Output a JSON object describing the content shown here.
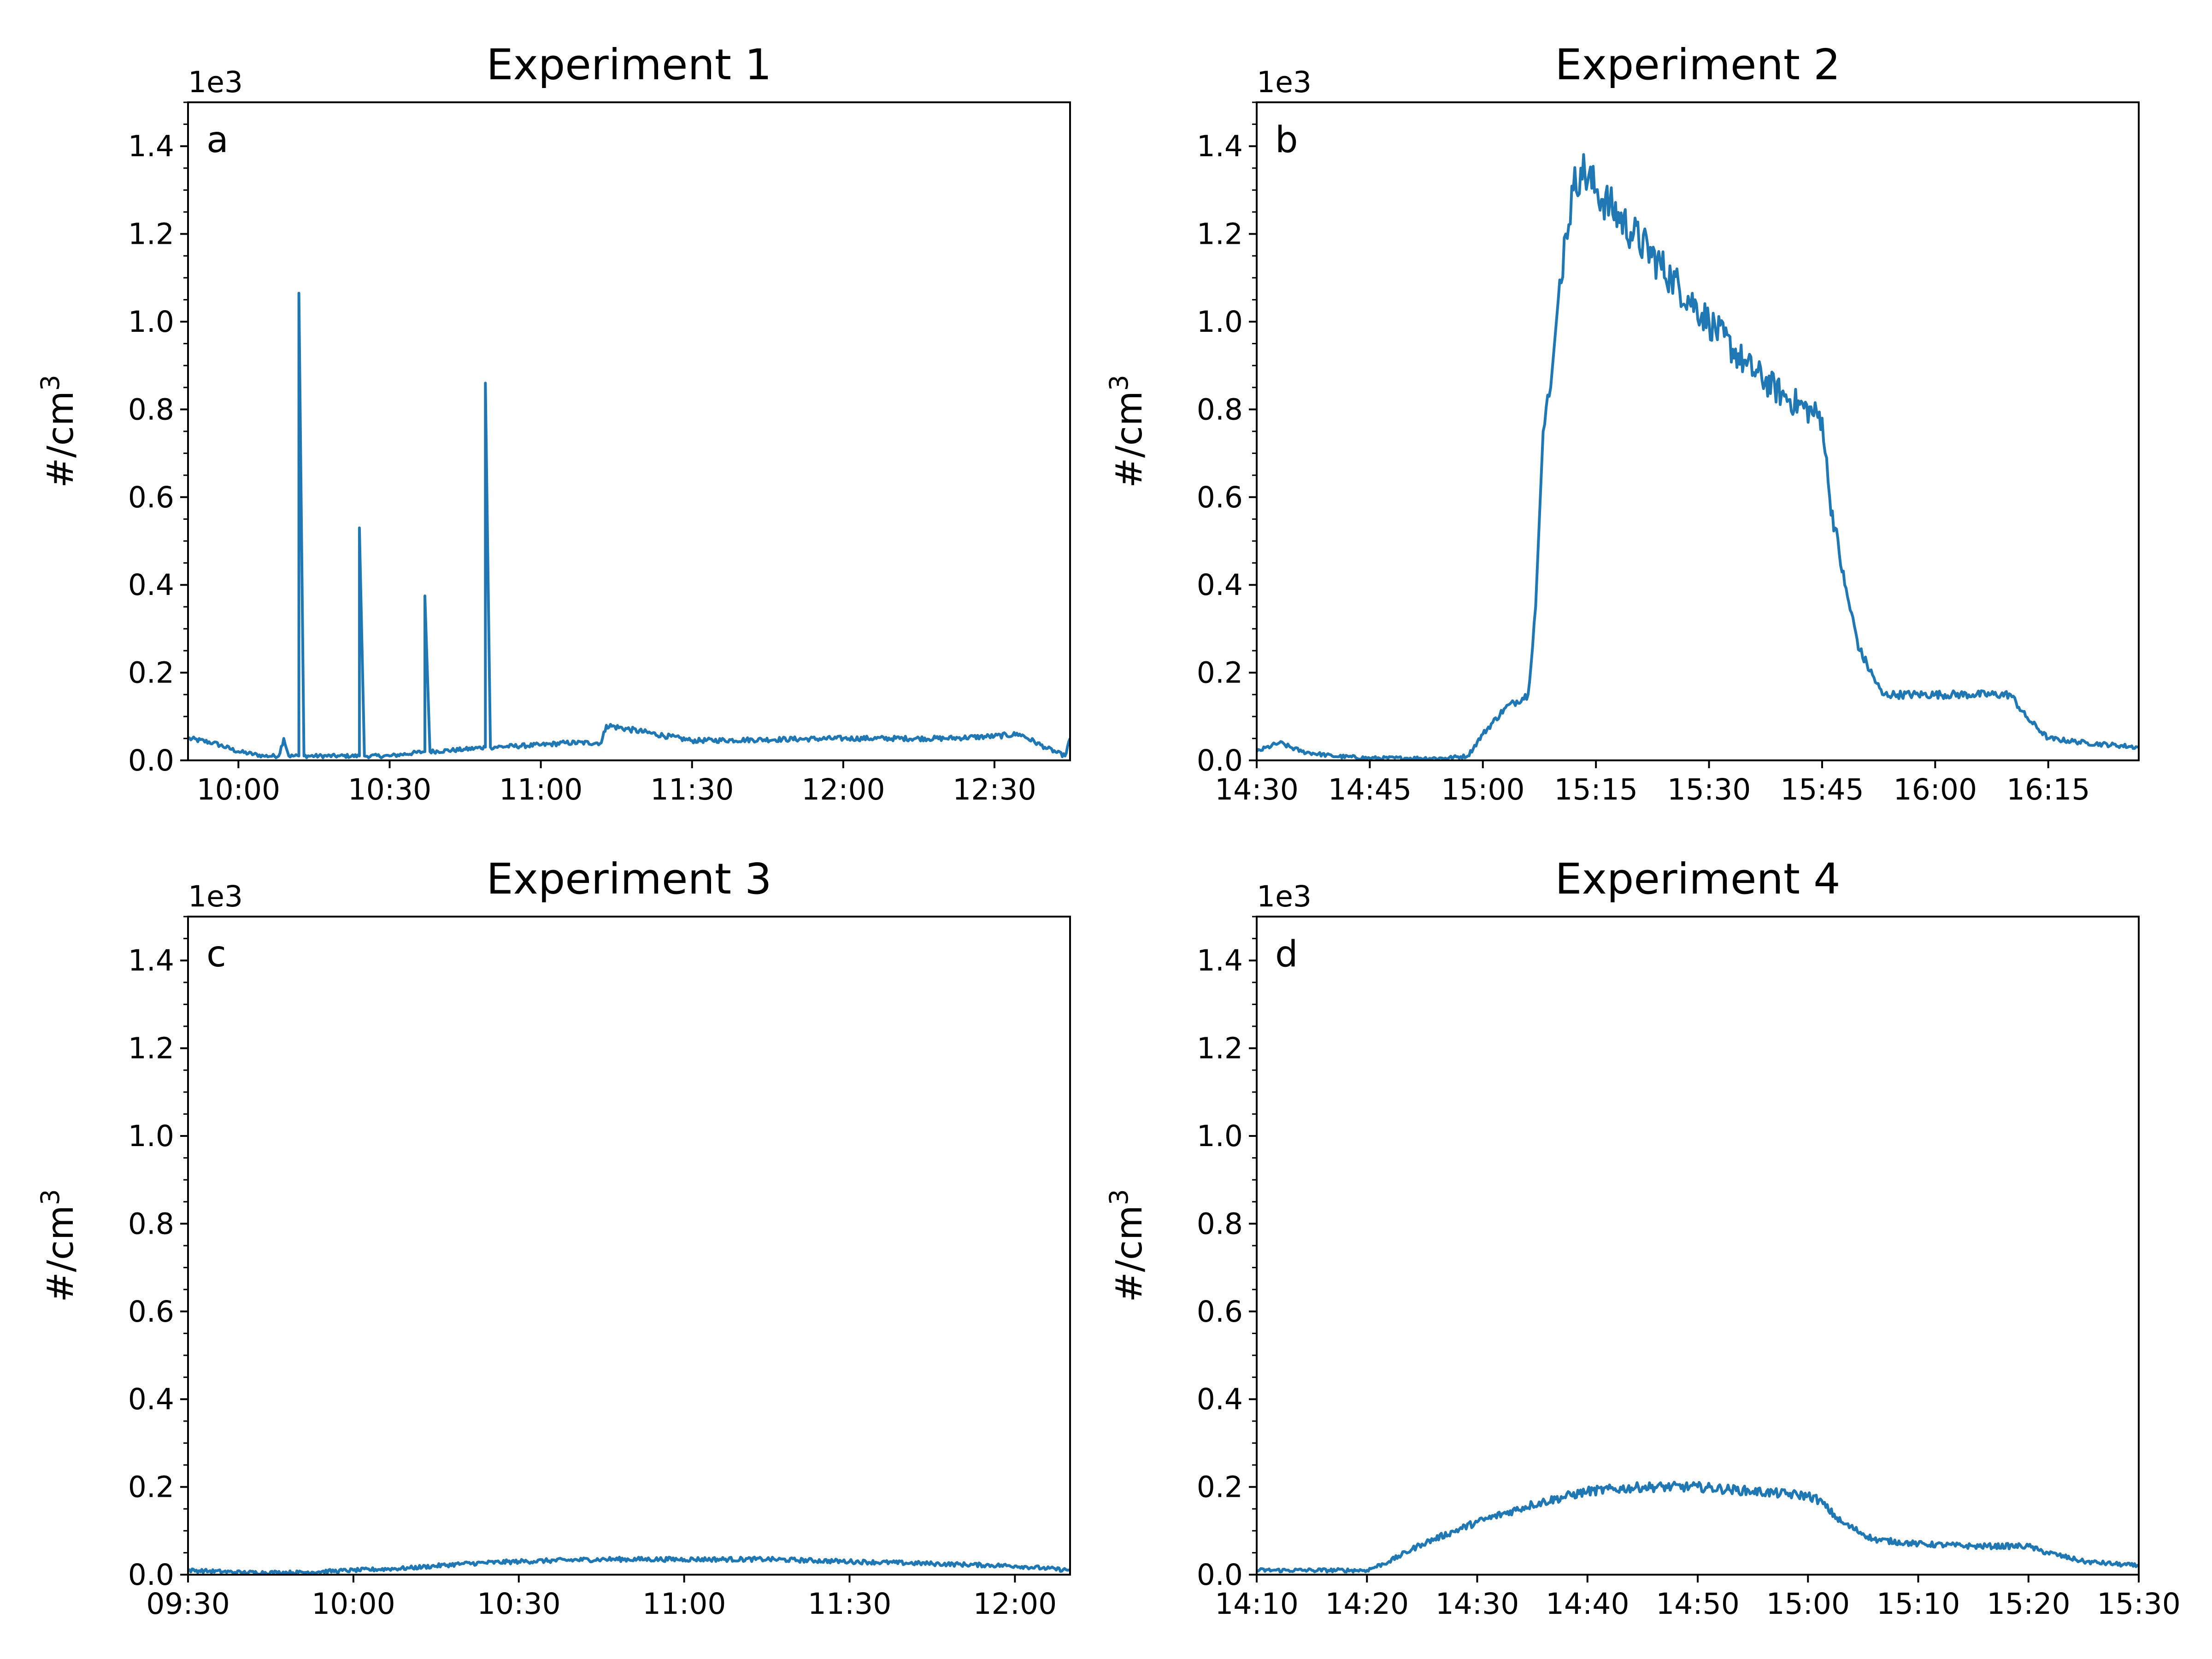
{
  "colors": {
    "series": "#1f77b4",
    "axes": "#000000",
    "background": "#ffffff"
  },
  "chart_data": [
    {
      "type": "line",
      "title": "Experiment 1",
      "panel_label": "a",
      "ylabel": "#/cm3",
      "y_offset_text": "1e3",
      "ylim": [
        0,
        1.5
      ],
      "xlim": [
        "09:50",
        "12:45"
      ],
      "x_ticks": [
        "10:00",
        "10:30",
        "11:00",
        "11:30",
        "12:00",
        "12:30"
      ],
      "y_ticks": [
        "0.0",
        "0.2",
        "0.4",
        "0.6",
        "0.8",
        "1.0",
        "1.2",
        "1.4"
      ],
      "grid": false,
      "legend": "none",
      "series": [
        {
          "x": [
            "09:50",
            "09:55",
            "10:00",
            "10:05",
            "10:08",
            "10:09",
            "10:10",
            "10:12",
            "10:12",
            "10:13",
            "10:20",
            "10:24",
            "10:24",
            "10:25",
            "10:30",
            "10:37",
            "10:37",
            "10:38",
            "10:45",
            "10:49",
            "10:49",
            "10:50",
            "11:00",
            "11:05",
            "11:12",
            "11:13",
            "11:30",
            "12:00",
            "12:20",
            "12:30",
            "12:35",
            "12:40",
            "12:44",
            "12:45"
          ],
          "y": [
            0.05,
            0.04,
            0.02,
            0.01,
            0.01,
            0.05,
            0.01,
            0.01,
            1.065,
            0.01,
            0.01,
            0.01,
            0.53,
            0.01,
            0.01,
            0.02,
            0.375,
            0.02,
            0.025,
            0.03,
            0.86,
            0.03,
            0.035,
            0.04,
            0.04,
            0.08,
            0.045,
            0.05,
            0.05,
            0.055,
            0.06,
            0.03,
            0.01,
            0.05
          ]
        }
      ]
    },
    {
      "type": "line",
      "title": "Experiment 2",
      "panel_label": "b",
      "ylabel": "#/cm3",
      "y_offset_text": "1e3",
      "ylim": [
        0,
        1.5
      ],
      "xlim": [
        "14:30",
        "16:27"
      ],
      "x_ticks": [
        "14:30",
        "14:45",
        "15:00",
        "15:15",
        "15:30",
        "15:45",
        "16:00",
        "16:15"
      ],
      "y_ticks": [
        "0.0",
        "0.2",
        "0.4",
        "0.6",
        "0.8",
        "1.0",
        "1.2",
        "1.4"
      ],
      "grid": false,
      "legend": "none",
      "series": [
        {
          "x": [
            "14:30",
            "14:33",
            "14:36",
            "14:40",
            "14:45",
            "14:50",
            "14:55",
            "14:58",
            "15:00",
            "15:03",
            "15:06",
            "15:07",
            "15:08",
            "15:09",
            "15:10",
            "15:11",
            "15:12",
            "15:13",
            "15:15",
            "15:20",
            "15:25",
            "15:30",
            "15:35",
            "15:40",
            "15:45",
            "15:46",
            "15:48",
            "15:50",
            "15:53",
            "15:55",
            "16:00",
            "16:05",
            "16:10",
            "16:12",
            "16:15",
            "16:20",
            "16:27"
          ],
          "y": [
            0.02,
            0.04,
            0.02,
            0.01,
            0.005,
            0.005,
            0.005,
            0.01,
            0.06,
            0.12,
            0.15,
            0.35,
            0.75,
            0.85,
            1.05,
            1.2,
            1.3,
            1.35,
            1.3,
            1.2,
            1.1,
            1.0,
            0.9,
            0.83,
            0.78,
            0.6,
            0.4,
            0.25,
            0.15,
            0.15,
            0.15,
            0.15,
            0.15,
            0.1,
            0.05,
            0.04,
            0.03
          ]
        }
      ]
    },
    {
      "type": "line",
      "title": "Experiment 3",
      "panel_label": "c",
      "ylabel": "#/cm3",
      "y_offset_text": "1e3",
      "ylim": [
        0,
        1.5
      ],
      "xlim": [
        "09:30",
        "12:10"
      ],
      "x_ticks": [
        "09:30",
        "10:00",
        "10:30",
        "11:00",
        "11:30",
        "12:00"
      ],
      "y_ticks": [
        "0.0",
        "0.2",
        "0.4",
        "0.6",
        "0.8",
        "1.0",
        "1.2",
        "1.4"
      ],
      "grid": false,
      "legend": "none",
      "series": [
        {
          "x": [
            "09:30",
            "09:40",
            "09:50",
            "10:00",
            "10:10",
            "10:20",
            "10:30",
            "10:45",
            "11:00",
            "11:15",
            "11:30",
            "11:45",
            "12:00",
            "12:05",
            "12:10"
          ],
          "y": [
            0.01,
            0.005,
            0.005,
            0.01,
            0.015,
            0.025,
            0.03,
            0.035,
            0.035,
            0.035,
            0.03,
            0.025,
            0.02,
            0.015,
            0.01
          ]
        }
      ]
    },
    {
      "type": "line",
      "title": "Experiment 4",
      "panel_label": "d",
      "ylabel": "#/cm3",
      "y_offset_text": "1e3",
      "ylim": [
        0,
        1.5
      ],
      "xlim": [
        "14:10",
        "15:30"
      ],
      "x_ticks": [
        "14:10",
        "14:20",
        "14:30",
        "14:40",
        "14:50",
        "15:00",
        "15:10",
        "15:20",
        "15:30"
      ],
      "y_ticks": [
        "0.0",
        "0.2",
        "0.4",
        "0.6",
        "0.8",
        "1.0",
        "1.2",
        "1.4"
      ],
      "grid": false,
      "legend": "none",
      "series": [
        {
          "x": [
            "14:10",
            "14:15",
            "14:20",
            "14:22",
            "14:25",
            "14:30",
            "14:35",
            "14:40",
            "14:45",
            "14:50",
            "14:55",
            "15:00",
            "15:01",
            "15:03",
            "15:06",
            "15:10",
            "15:15",
            "15:20",
            "15:21",
            "15:25",
            "15:30"
          ],
          "y": [
            0.01,
            0.01,
            0.01,
            0.03,
            0.07,
            0.12,
            0.16,
            0.19,
            0.2,
            0.2,
            0.19,
            0.18,
            0.17,
            0.12,
            0.08,
            0.07,
            0.065,
            0.065,
            0.055,
            0.03,
            0.02
          ]
        }
      ]
    }
  ]
}
